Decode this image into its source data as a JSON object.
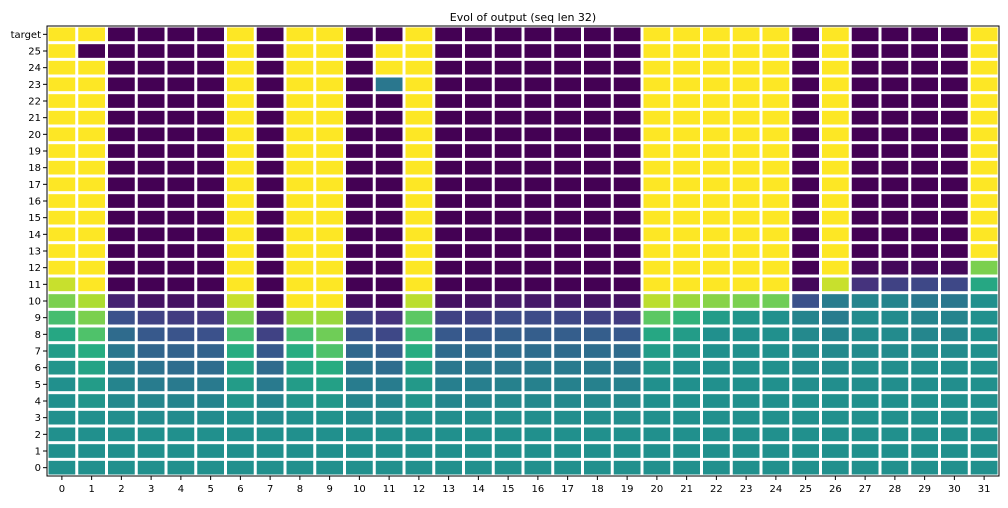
{
  "chart_data": {
    "type": "heatmap",
    "title": "Evol of output (seq len 32)",
    "xlabel": "",
    "ylabel": "",
    "x_ticks": [
      "0",
      "1",
      "2",
      "3",
      "4",
      "5",
      "6",
      "7",
      "8",
      "9",
      "10",
      "11",
      "12",
      "13",
      "14",
      "15",
      "16",
      "17",
      "18",
      "19",
      "20",
      "21",
      "22",
      "23",
      "24",
      "25",
      "26",
      "27",
      "28",
      "29",
      "30",
      "31"
    ],
    "y_ticks": [
      "target",
      "25",
      "24",
      "23",
      "22",
      "21",
      "20",
      "19",
      "18",
      "17",
      "16",
      "15",
      "14",
      "13",
      "12",
      "11",
      "10",
      "9",
      "8",
      "7",
      "6",
      "5",
      "4",
      "3",
      "2",
      "1",
      "0"
    ],
    "value_range": [
      0,
      1
    ],
    "colormap": "viridis",
    "grid": false,
    "values": [
      [
        1,
        1,
        0,
        0,
        0,
        0,
        1,
        0,
        1,
        1,
        0,
        0,
        1,
        0,
        0,
        0,
        0,
        0,
        0,
        0,
        1,
        1,
        1,
        1,
        1,
        0,
        1,
        0,
        0,
        0,
        0,
        1
      ],
      [
        1,
        0,
        0,
        0,
        0,
        0,
        1,
        0,
        1,
        1,
        0,
        1,
        1,
        0,
        0,
        0,
        0,
        0,
        0,
        0,
        1,
        1,
        1,
        1,
        1,
        0,
        1,
        0,
        0,
        0,
        0,
        1
      ],
      [
        1,
        1,
        0,
        0,
        0,
        0,
        1,
        0,
        1,
        1,
        0,
        1,
        1,
        0,
        0,
        0,
        0,
        0,
        0,
        0,
        1,
        1,
        1,
        1,
        1,
        0,
        1,
        0,
        0,
        0,
        0,
        1
      ],
      [
        1,
        1,
        0,
        0,
        0,
        0,
        1,
        0,
        1,
        1,
        0,
        0.4,
        1,
        0,
        0,
        0,
        0,
        0,
        0,
        0,
        1,
        1,
        1,
        1,
        1,
        0,
        1,
        0,
        0,
        0,
        0,
        1
      ],
      [
        1,
        1,
        0,
        0,
        0,
        0,
        1,
        0,
        1,
        1,
        0,
        0,
        1,
        0,
        0,
        0,
        0,
        0,
        0,
        0,
        1,
        1,
        1,
        1,
        1,
        0,
        1,
        0,
        0,
        0,
        0,
        1
      ],
      [
        1,
        1,
        0,
        0,
        0,
        0,
        1,
        0,
        1,
        1,
        0,
        0,
        1,
        0,
        0,
        0,
        0,
        0,
        0,
        0,
        1,
        1,
        1,
        1,
        1,
        0,
        1,
        0,
        0,
        0,
        0,
        1
      ],
      [
        1,
        1,
        0,
        0,
        0,
        0,
        1,
        0,
        1,
        1,
        0,
        0,
        1,
        0,
        0,
        0,
        0,
        0,
        0,
        0,
        1,
        1,
        1,
        1,
        1,
        0,
        1,
        0,
        0,
        0,
        0,
        1
      ],
      [
        1,
        1,
        0,
        0,
        0,
        0,
        1,
        0,
        1,
        1,
        0,
        0,
        1,
        0,
        0,
        0,
        0,
        0,
        0,
        0,
        1,
        1,
        1,
        1,
        1,
        0,
        1,
        0,
        0,
        0,
        0,
        1
      ],
      [
        1,
        1,
        0,
        0,
        0,
        0,
        1,
        0,
        1,
        1,
        0,
        0,
        1,
        0,
        0,
        0,
        0,
        0,
        0,
        0,
        1,
        1,
        1,
        1,
        1,
        0,
        1,
        0,
        0,
        0,
        0,
        1
      ],
      [
        1,
        1,
        0,
        0,
        0,
        0,
        1,
        0,
        1,
        1,
        0,
        0,
        1,
        0,
        0,
        0,
        0,
        0,
        0,
        0,
        1,
        1,
        1,
        1,
        1,
        0,
        1,
        0,
        0,
        0,
        0,
        1
      ],
      [
        1,
        1,
        0,
        0,
        0,
        0,
        1,
        0,
        1,
        1,
        0,
        0,
        1,
        0,
        0,
        0,
        0,
        0,
        0,
        0,
        1,
        1,
        1,
        1,
        1,
        0,
        1,
        0,
        0,
        0,
        0,
        1
      ],
      [
        1,
        1,
        0,
        0,
        0,
        0,
        1,
        0,
        1,
        1,
        0,
        0,
        1,
        0,
        0,
        0,
        0,
        0,
        0,
        0,
        1,
        1,
        1,
        1,
        1,
        0,
        1,
        0,
        0,
        0,
        0,
        1
      ],
      [
        1,
        1,
        0,
        0,
        0,
        0,
        1,
        0,
        1,
        1,
        0,
        0,
        1,
        0,
        0,
        0,
        0,
        0,
        0,
        0,
        1,
        1,
        1,
        1,
        1,
        0,
        1,
        0,
        0,
        0,
        0,
        1
      ],
      [
        1,
        1,
        0,
        0,
        0,
        0,
        1,
        0,
        1,
        1,
        0,
        0,
        1,
        0,
        0,
        0,
        0,
        0,
        0,
        0,
        1,
        1,
        1,
        1,
        1,
        0,
        1,
        0,
        0,
        0,
        0,
        1
      ],
      [
        1,
        1,
        0,
        0,
        0,
        0,
        1,
        0,
        1,
        1,
        0,
        0,
        1,
        0,
        0,
        0,
        0,
        0,
        0,
        0,
        1,
        1,
        1,
        1,
        1,
        0,
        1,
        0.02,
        0.02,
        0.02,
        0.02,
        0.8
      ],
      [
        0.92,
        1,
        0,
        0,
        0,
        0,
        1,
        0,
        1,
        1,
        0,
        0,
        1,
        0,
        0,
        0,
        0,
        0,
        0,
        0,
        1,
        1,
        1,
        1,
        1,
        0.02,
        0.92,
        0.15,
        0.2,
        0.22,
        0.22,
        0.6
      ],
      [
        0.8,
        0.88,
        0.1,
        0.05,
        0.05,
        0.05,
        0.92,
        0.01,
        1,
        1,
        0.03,
        0.01,
        0.9,
        0.05,
        0.05,
        0.07,
        0.07,
        0.06,
        0.05,
        0.05,
        0.9,
        0.85,
        0.82,
        0.8,
        0.78,
        0.25,
        0.42,
        0.45,
        0.45,
        0.4,
        0.4,
        0.5
      ],
      [
        0.7,
        0.8,
        0.25,
        0.2,
        0.18,
        0.17,
        0.8,
        0.1,
        0.85,
        0.85,
        0.2,
        0.15,
        0.75,
        0.2,
        0.2,
        0.23,
        0.23,
        0.22,
        0.2,
        0.18,
        0.75,
        0.65,
        0.55,
        0.52,
        0.5,
        0.45,
        0.42,
        0.48,
        0.48,
        0.45,
        0.45,
        0.5
      ],
      [
        0.6,
        0.72,
        0.35,
        0.28,
        0.26,
        0.25,
        0.7,
        0.2,
        0.7,
        0.78,
        0.26,
        0.22,
        0.68,
        0.28,
        0.28,
        0.3,
        0.3,
        0.3,
        0.3,
        0.28,
        0.6,
        0.55,
        0.5,
        0.5,
        0.5,
        0.47,
        0.45,
        0.48,
        0.48,
        0.46,
        0.46,
        0.5
      ],
      [
        0.55,
        0.62,
        0.4,
        0.33,
        0.32,
        0.32,
        0.62,
        0.28,
        0.62,
        0.72,
        0.34,
        0.3,
        0.62,
        0.35,
        0.35,
        0.36,
        0.36,
        0.35,
        0.36,
        0.35,
        0.55,
        0.52,
        0.5,
        0.5,
        0.5,
        0.48,
        0.47,
        0.48,
        0.48,
        0.48,
        0.48,
        0.5
      ],
      [
        0.52,
        0.58,
        0.42,
        0.38,
        0.36,
        0.36,
        0.58,
        0.35,
        0.58,
        0.62,
        0.38,
        0.36,
        0.57,
        0.4,
        0.4,
        0.4,
        0.41,
        0.41,
        0.41,
        0.4,
        0.52,
        0.5,
        0.5,
        0.5,
        0.5,
        0.48,
        0.48,
        0.49,
        0.49,
        0.49,
        0.49,
        0.5
      ],
      [
        0.5,
        0.55,
        0.45,
        0.42,
        0.41,
        0.41,
        0.55,
        0.41,
        0.55,
        0.57,
        0.42,
        0.42,
        0.54,
        0.43,
        0.43,
        0.44,
        0.44,
        0.44,
        0.44,
        0.44,
        0.5,
        0.5,
        0.5,
        0.5,
        0.5,
        0.49,
        0.49,
        0.49,
        0.49,
        0.49,
        0.49,
        0.5
      ],
      [
        0.5,
        0.52,
        0.47,
        0.46,
        0.45,
        0.45,
        0.52,
        0.45,
        0.52,
        0.53,
        0.46,
        0.46,
        0.52,
        0.46,
        0.46,
        0.47,
        0.47,
        0.47,
        0.47,
        0.47,
        0.5,
        0.5,
        0.5,
        0.5,
        0.5,
        0.5,
        0.5,
        0.5,
        0.5,
        0.5,
        0.5,
        0.5
      ],
      [
        0.5,
        0.5,
        0.49,
        0.48,
        0.48,
        0.48,
        0.5,
        0.48,
        0.5,
        0.51,
        0.48,
        0.48,
        0.5,
        0.49,
        0.49,
        0.49,
        0.49,
        0.49,
        0.49,
        0.49,
        0.5,
        0.5,
        0.5,
        0.5,
        0.5,
        0.5,
        0.5,
        0.5,
        0.5,
        0.5,
        0.5,
        0.5
      ],
      [
        0.5,
        0.5,
        0.5,
        0.5,
        0.5,
        0.5,
        0.5,
        0.5,
        0.5,
        0.5,
        0.5,
        0.5,
        0.5,
        0.5,
        0.5,
        0.5,
        0.5,
        0.5,
        0.5,
        0.5,
        0.5,
        0.5,
        0.5,
        0.5,
        0.5,
        0.5,
        0.5,
        0.5,
        0.5,
        0.5,
        0.5,
        0.5
      ],
      [
        0.5,
        0.5,
        0.5,
        0.5,
        0.5,
        0.5,
        0.5,
        0.5,
        0.5,
        0.5,
        0.5,
        0.5,
        0.5,
        0.5,
        0.5,
        0.5,
        0.5,
        0.5,
        0.5,
        0.5,
        0.5,
        0.5,
        0.5,
        0.5,
        0.5,
        0.5,
        0.5,
        0.5,
        0.5,
        0.5,
        0.5,
        0.5
      ],
      [
        0.5,
        0.5,
        0.5,
        0.5,
        0.5,
        0.5,
        0.5,
        0.5,
        0.5,
        0.5,
        0.5,
        0.5,
        0.5,
        0.5,
        0.5,
        0.5,
        0.5,
        0.5,
        0.5,
        0.5,
        0.5,
        0.5,
        0.5,
        0.5,
        0.5,
        0.5,
        0.5,
        0.5,
        0.5,
        0.5,
        0.5,
        0.5
      ]
    ]
  }
}
